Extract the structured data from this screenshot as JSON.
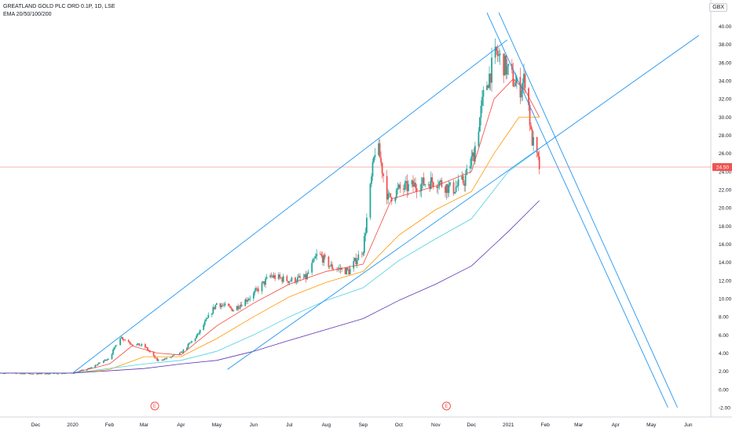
{
  "chart_data": {
    "type": "candlestick",
    "title": "GREATLAND GOLD PLC ORD 0.1P, 1D, LSE",
    "subtitle": "EMA 20/50/100/200",
    "currency": "GBX",
    "last_price_label": "24.50",
    "last_price": 24.5,
    "ylim": [
      -2,
      41
    ],
    "yticks": [
      "-2.00",
      "0.00",
      "2.00",
      "4.00",
      "6.00",
      "8.00",
      "10.00",
      "12.00",
      "14.00",
      "16.00",
      "18.00",
      "20.00",
      "22.00",
      "24.00",
      "26.00",
      "28.00",
      "30.00",
      "32.00",
      "34.00",
      "36.00",
      "38.00",
      "40.00"
    ],
    "xlabels": [
      {
        "label": "Dec",
        "date": "2019-12-01"
      },
      {
        "label": "2020",
        "date": "2020-01-01"
      },
      {
        "label": "Feb",
        "date": "2020-02-01"
      },
      {
        "label": "Mar",
        "date": "2020-03-01"
      },
      {
        "label": "Apr",
        "date": "2020-04-01"
      },
      {
        "label": "May",
        "date": "2020-05-01"
      },
      {
        "label": "Jun",
        "date": "2020-06-01"
      },
      {
        "label": "Jul",
        "date": "2020-07-01"
      },
      {
        "label": "Aug",
        "date": "2020-08-01"
      },
      {
        "label": "Sep",
        "date": "2020-09-01"
      },
      {
        "label": "Oct",
        "date": "2020-10-01"
      },
      {
        "label": "Nov",
        "date": "2020-11-01"
      },
      {
        "label": "Dec",
        "date": "2020-12-01"
      },
      {
        "label": "2021",
        "date": "2021-01-01"
      },
      {
        "label": "Feb",
        "date": "2021-02-01"
      },
      {
        "label": "Mar",
        "date": "2021-03-01"
      },
      {
        "label": "Apr",
        "date": "2021-04-01"
      },
      {
        "label": "May",
        "date": "2021-05-01"
      },
      {
        "label": "Jun",
        "date": "2021-06-01"
      }
    ],
    "events": [
      {
        "label": "E",
        "date": "2020-03-10"
      },
      {
        "label": "E",
        "date": "2020-11-10"
      }
    ],
    "price_path": [
      [
        "2019-11-01",
        1.8
      ],
      [
        "2019-12-01",
        1.7
      ],
      [
        "2020-01-01",
        1.8
      ],
      [
        "2020-01-15",
        2.3
      ],
      [
        "2020-02-01",
        3.5
      ],
      [
        "2020-02-10",
        5.8
      ],
      [
        "2020-02-20",
        5.0
      ],
      [
        "2020-03-01",
        4.8
      ],
      [
        "2020-03-12",
        3.2
      ],
      [
        "2020-03-20",
        3.4
      ],
      [
        "2020-04-01",
        4.0
      ],
      [
        "2020-04-15",
        6.0
      ],
      [
        "2020-05-01",
        9.5
      ],
      [
        "2020-05-15",
        8.8
      ],
      [
        "2020-06-01",
        10.5
      ],
      [
        "2020-06-15",
        12.5
      ],
      [
        "2020-07-01",
        12.0
      ],
      [
        "2020-07-15",
        12.3
      ],
      [
        "2020-07-25",
        15.0
      ],
      [
        "2020-08-05",
        13.5
      ],
      [
        "2020-08-20",
        13.0
      ],
      [
        "2020-09-01",
        15.5
      ],
      [
        "2020-09-12",
        27.5
      ],
      [
        "2020-09-22",
        21.0
      ],
      [
        "2020-10-01",
        22.0
      ],
      [
        "2020-10-15",
        22.5
      ],
      [
        "2020-11-01",
        23.0
      ],
      [
        "2020-11-15",
        22.0
      ],
      [
        "2020-11-25",
        23.0
      ],
      [
        "2020-12-03",
        26.0
      ],
      [
        "2020-12-12",
        33.0
      ],
      [
        "2020-12-22",
        37.0
      ],
      [
        "2021-01-01",
        35.0
      ],
      [
        "2021-01-10",
        33.0
      ],
      [
        "2021-01-16",
        34.5
      ],
      [
        "2021-01-20",
        28.0
      ],
      [
        "2021-01-27",
        24.5
      ]
    ],
    "ema": [
      {
        "name": "EMA 20",
        "color": "#f44336",
        "values": [
          [
            "2019-11-01",
            1.8
          ],
          [
            "2020-01-01",
            1.8
          ],
          [
            "2020-02-01",
            2.8
          ],
          [
            "2020-02-20",
            4.8
          ],
          [
            "2020-03-12",
            4.0
          ],
          [
            "2020-04-01",
            3.8
          ],
          [
            "2020-05-01",
            7.0
          ],
          [
            "2020-06-01",
            9.5
          ],
          [
            "2020-07-01",
            11.6
          ],
          [
            "2020-08-01",
            13.0
          ],
          [
            "2020-09-01",
            13.8
          ],
          [
            "2020-09-25",
            21.0
          ],
          [
            "2020-11-01",
            22.4
          ],
          [
            "2020-12-01",
            24.0
          ],
          [
            "2020-12-20",
            32.0
          ],
          [
            "2021-01-05",
            34.2
          ],
          [
            "2021-01-15",
            33.0
          ],
          [
            "2021-01-27",
            30.0
          ]
        ]
      },
      {
        "name": "EMA 50",
        "color": "#ff9800",
        "values": [
          [
            "2019-11-01",
            1.8
          ],
          [
            "2020-01-01",
            1.8
          ],
          [
            "2020-02-01",
            2.2
          ],
          [
            "2020-03-01",
            3.6
          ],
          [
            "2020-04-01",
            3.6
          ],
          [
            "2020-05-01",
            5.6
          ],
          [
            "2020-06-01",
            8.0
          ],
          [
            "2020-07-01",
            10.2
          ],
          [
            "2020-08-01",
            11.8
          ],
          [
            "2020-09-01",
            13.0
          ],
          [
            "2020-10-01",
            17.0
          ],
          [
            "2020-11-01",
            19.8
          ],
          [
            "2020-12-01",
            21.8
          ],
          [
            "2020-12-20",
            26.0
          ],
          [
            "2021-01-10",
            30.0
          ],
          [
            "2021-01-27",
            30.0
          ]
        ]
      },
      {
        "name": "EMA 100",
        "color": "#4dd0e1",
        "values": [
          [
            "2019-11-01",
            1.8
          ],
          [
            "2020-01-01",
            1.8
          ],
          [
            "2020-03-01",
            2.8
          ],
          [
            "2020-04-01",
            3.2
          ],
          [
            "2020-05-01",
            4.2
          ],
          [
            "2020-06-01",
            6.0
          ],
          [
            "2020-07-01",
            8.0
          ],
          [
            "2020-08-01",
            9.8
          ],
          [
            "2020-09-01",
            11.2
          ],
          [
            "2020-10-01",
            14.2
          ],
          [
            "2020-11-01",
            16.6
          ],
          [
            "2020-12-01",
            18.8
          ],
          [
            "2021-01-01",
            24.0
          ],
          [
            "2021-01-27",
            26.5
          ]
        ]
      },
      {
        "name": "EMA 200",
        "color": "#5e35b1",
        "values": [
          [
            "2019-11-01",
            1.8
          ],
          [
            "2020-01-01",
            1.8
          ],
          [
            "2020-03-01",
            2.3
          ],
          [
            "2020-04-01",
            2.8
          ],
          [
            "2020-05-01",
            3.2
          ],
          [
            "2020-06-01",
            4.2
          ],
          [
            "2020-07-01",
            5.4
          ],
          [
            "2020-08-01",
            6.6
          ],
          [
            "2020-09-01",
            7.8
          ],
          [
            "2020-10-01",
            9.8
          ],
          [
            "2020-11-01",
            11.6
          ],
          [
            "2020-12-01",
            13.6
          ],
          [
            "2021-01-01",
            17.4
          ],
          [
            "2021-01-27",
            20.8
          ]
        ]
      }
    ],
    "trendlines": [
      {
        "name": "upper-channel",
        "color": "#2196f3",
        "from": [
          "2020-01-01",
          1.8
        ],
        "to": [
          "2020-12-31",
          38.5
        ]
      },
      {
        "name": "lower-channel",
        "color": "#2196f3",
        "from": [
          "2020-05-10",
          2.2
        ],
        "to": [
          "2021-06-10",
          39.0
        ]
      },
      {
        "name": "down-line-1",
        "color": "#2196f3",
        "from": [
          "2020-12-14",
          41.5
        ],
        "to": [
          "2021-05-15",
          -2.0
        ]
      },
      {
        "name": "down-line-2",
        "color": "#2196f3",
        "from": [
          "2020-12-24",
          41.5
        ],
        "to": [
          "2021-05-23",
          -2.0
        ]
      }
    ]
  }
}
